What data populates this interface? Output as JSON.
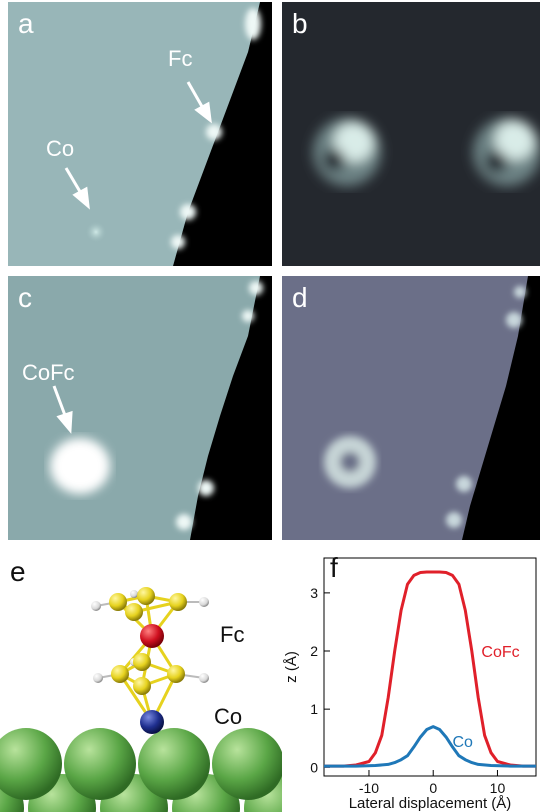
{
  "panels": {
    "a": {
      "label": "a",
      "annotations": {
        "fc": "Fc",
        "co": "Co"
      }
    },
    "b": {
      "label": "b"
    },
    "c": {
      "label": "c",
      "annotations": {
        "cofc": "CoFc"
      }
    },
    "d": {
      "label": "d"
    },
    "e": {
      "label": "e",
      "labels": {
        "fc": "Fc",
        "co": "Co"
      }
    },
    "f": {
      "label": "f"
    }
  },
  "colors": {
    "cofc_series": "#e0202a",
    "co_series": "#1f78b8",
    "surface_green": "#5aa646",
    "cobalt_atom": "#1f2f8f",
    "iron_atom": "#d01020",
    "carbon_atom": "#e6d21e",
    "hydrogen_atom": "#e8e8e8"
  },
  "chart_data": {
    "type": "line",
    "xlabel": "Lateral displacement (Å)",
    "ylabel": "z (Å)",
    "xlim": [
      -17,
      16
    ],
    "ylim": [
      -0.15,
      3.6
    ],
    "xticks": [
      -10,
      0,
      10
    ],
    "yticks": [
      0,
      1,
      2,
      3
    ],
    "grid": false,
    "series": [
      {
        "name": "CoFc",
        "color": "#e0202a",
        "x": [
          -17,
          -14,
          -12,
          -10,
          -9,
          -8,
          -7,
          -6,
          -5,
          -4,
          -3,
          -2,
          -1,
          0,
          1,
          2,
          3,
          4,
          5,
          6,
          7,
          8,
          9,
          10,
          12,
          14,
          16
        ],
        "y": [
          0.02,
          0.02,
          0.04,
          0.1,
          0.25,
          0.55,
          1.2,
          2.0,
          2.7,
          3.15,
          3.3,
          3.35,
          3.36,
          3.36,
          3.36,
          3.35,
          3.3,
          3.15,
          2.7,
          2.0,
          1.2,
          0.55,
          0.25,
          0.1,
          0.04,
          0.02,
          0.02
        ]
      },
      {
        "name": "Co",
        "color": "#1f78b8",
        "x": [
          -17,
          -12,
          -9,
          -7,
          -6,
          -5,
          -4,
          -3,
          -2,
          -1,
          0,
          1,
          2,
          3,
          4,
          5,
          6,
          7,
          9,
          12,
          16
        ],
        "y": [
          0.02,
          0.02,
          0.03,
          0.05,
          0.08,
          0.13,
          0.2,
          0.35,
          0.52,
          0.65,
          0.7,
          0.65,
          0.52,
          0.35,
          0.2,
          0.13,
          0.08,
          0.05,
          0.03,
          0.02,
          0.02
        ]
      }
    ]
  }
}
